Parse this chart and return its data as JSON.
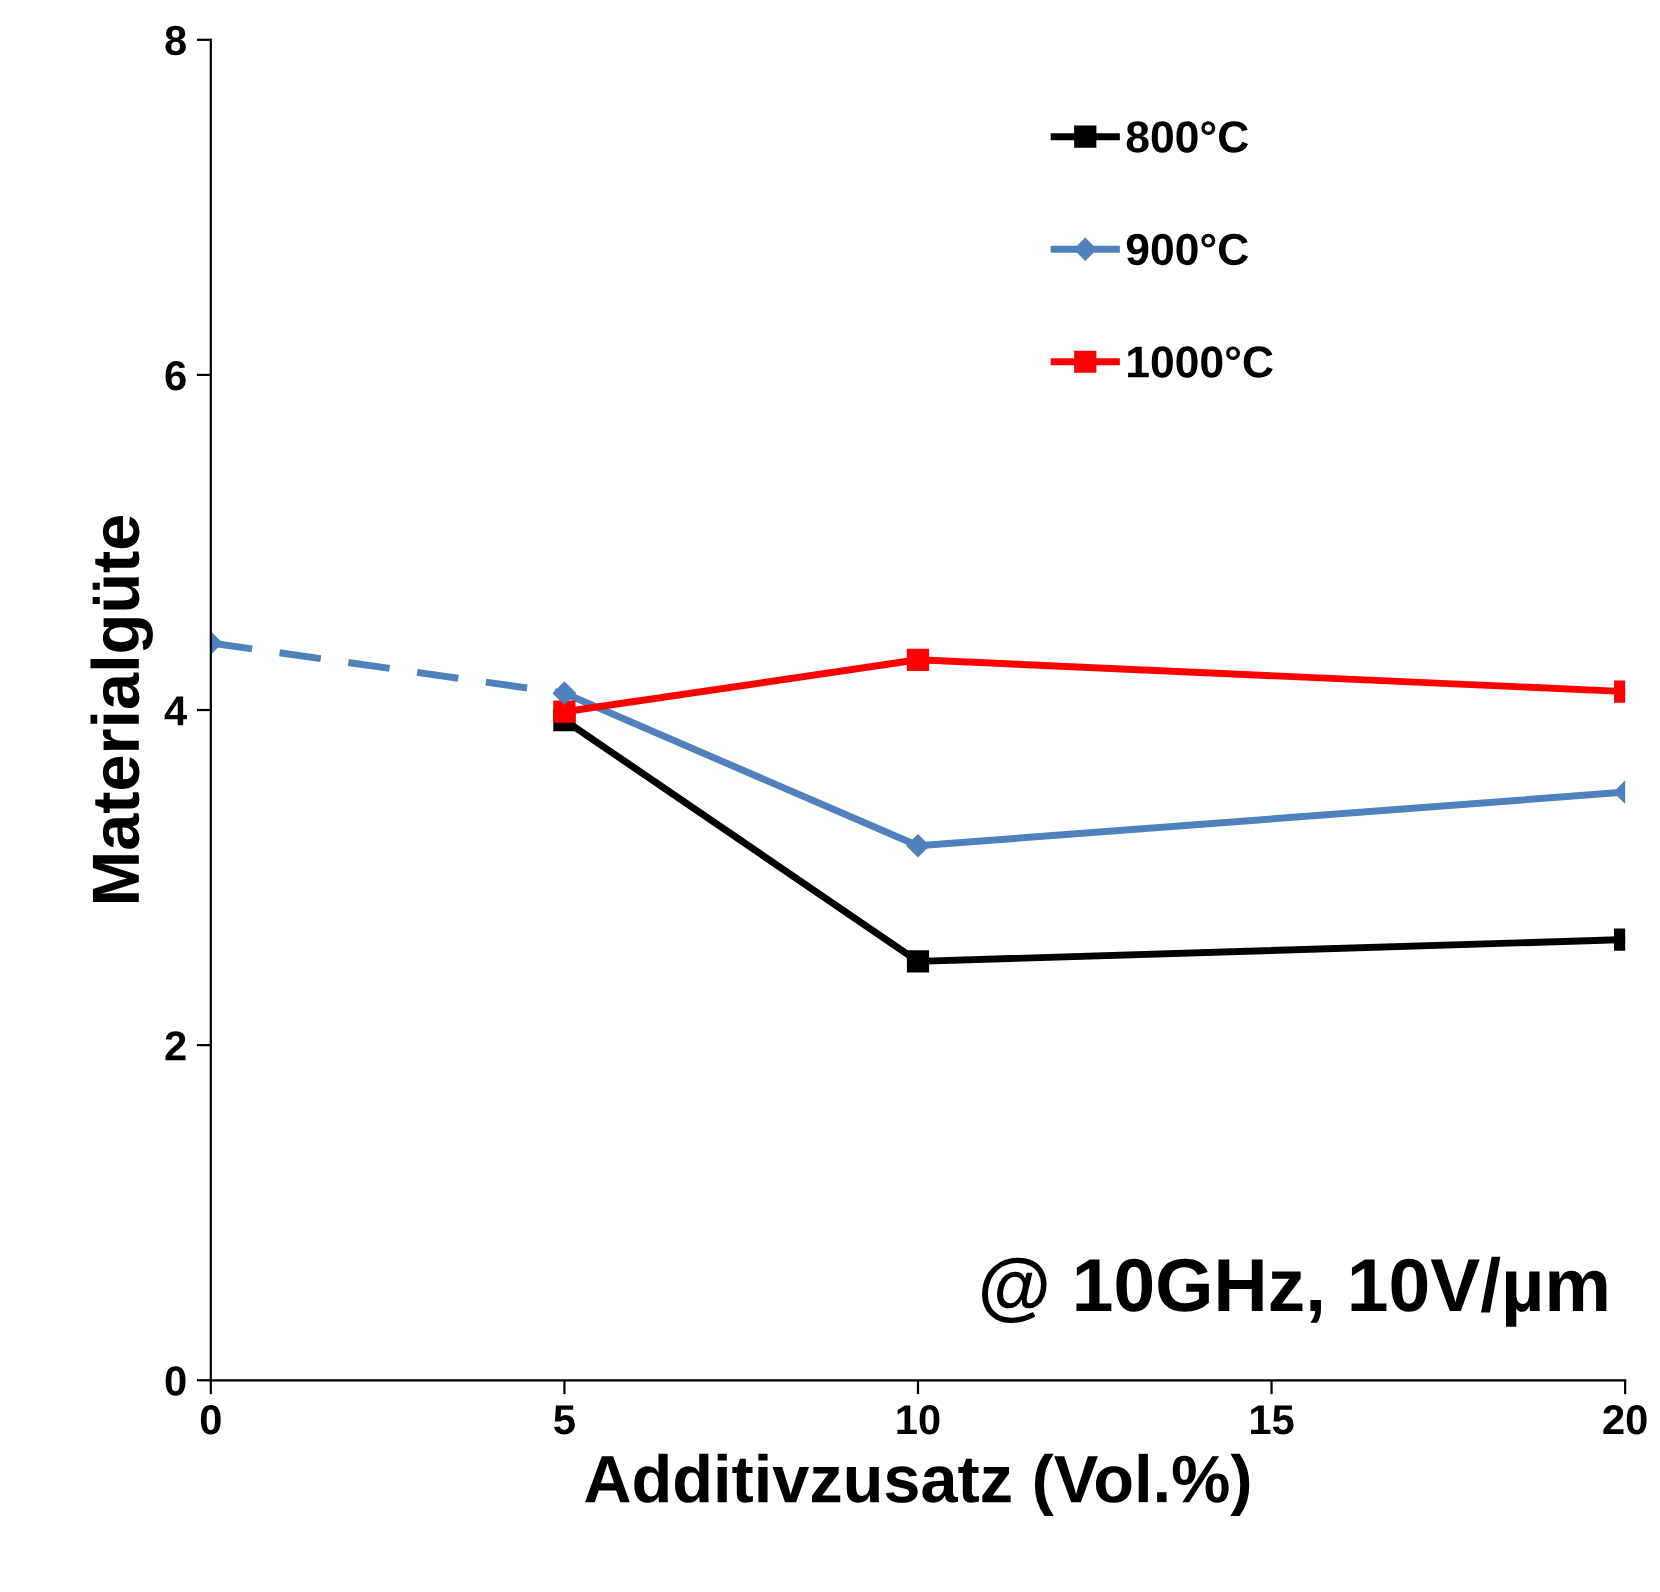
{
  "chart_data": {
    "type": "line",
    "xlabel": "Additivzusatz (Vol.%)",
    "ylabel": "Materialgüte",
    "xlim": [
      0,
      20
    ],
    "xticks": [
      0,
      5,
      10,
      15,
      20
    ],
    "ylim": [
      0,
      8
    ],
    "yticks": [
      0,
      2,
      4,
      6,
      8
    ],
    "grid": false,
    "legend": "top right",
    "series": [
      {
        "name": "800°C",
        "color": "#000000",
        "marker": "square",
        "line_style": "solid",
        "x": [
          5,
          10,
          20
        ],
        "values": [
          3.94,
          2.5,
          2.63
        ]
      },
      {
        "name": "900°C",
        "color": "#4f81bd",
        "marker": "diamond",
        "line_style": "solid",
        "x": [
          5,
          10,
          20
        ],
        "values": [
          4.1,
          3.19,
          3.51
        ]
      },
      {
        "name": "1000°C",
        "color": "#ff0000",
        "marker": "square",
        "line_style": "solid",
        "x": [
          5,
          10,
          20
        ],
        "values": [
          3.99,
          4.3,
          4.11
        ]
      },
      {
        "color": "#4f81bd",
        "marker": "diamond",
        "line_style": "dashed",
        "x": [
          0,
          5
        ],
        "values": [
          4.4,
          4.1
        ]
      }
    ],
    "annotations": [
      "@ 10GHz, 10V/µm"
    ]
  }
}
